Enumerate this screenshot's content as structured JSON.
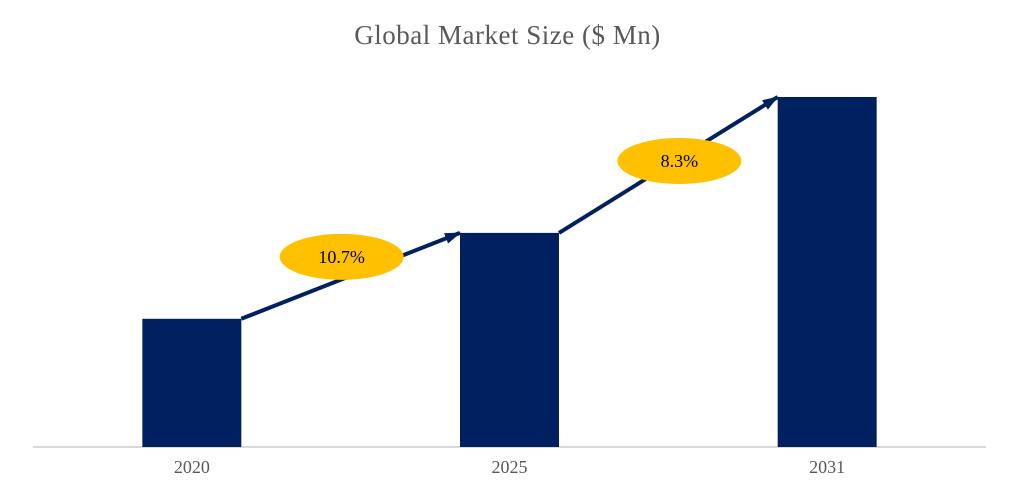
{
  "title": "Global Market Size ($ Mn)",
  "chart_data": {
    "type": "bar",
    "title": "Global Market Size ($ Mn)",
    "categories": [
      "2020",
      "2025",
      "2031"
    ],
    "values": [
      1.0,
      1.67,
      2.73
    ],
    "value_basis": "relative bar heights (no value axis labels shown)",
    "growth_annotations": [
      {
        "label": "10.7%",
        "from": "2020",
        "to": "2025"
      },
      {
        "label": "8.3%",
        "from": "2025",
        "to": "2031"
      }
    ],
    "xlabel": "",
    "ylabel": "",
    "value_axis": "hidden",
    "gridlines": false,
    "legend": "none",
    "colors": {
      "bar": "#002060",
      "arrow": "#002060",
      "annotation_fill": "#FFC000",
      "annotation_text": "#000000",
      "axis_line": "#D9D9D9",
      "title_text": "#595959",
      "tick_text": "#595959",
      "background": "#FFFFFF"
    }
  }
}
